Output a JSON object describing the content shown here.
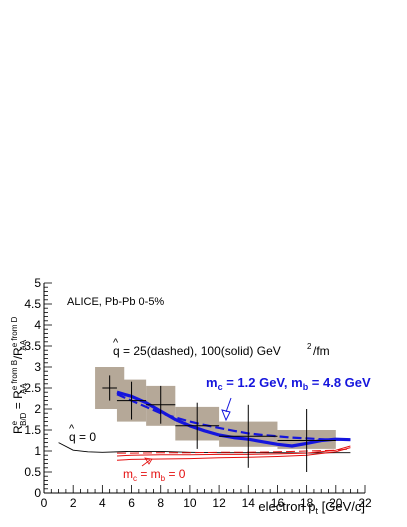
{
  "chart_data": {
    "type": "line",
    "title": "",
    "xlabel": "electron p_t [GeV/c]",
    "ylabel": "R_B/D^e = R_AA^e from B / R_AA^e from D",
    "xlim": [
      0,
      22
    ],
    "ylim": [
      0,
      5
    ],
    "x_ticks": [
      "0",
      "2",
      "4",
      "6",
      "8",
      "10",
      "12",
      "14",
      "16",
      "18",
      "20",
      "22"
    ],
    "y_ticks": [
      "0",
      "0.5",
      "1",
      "1.5",
      "2",
      "2.5",
      "3",
      "3.5",
      "4",
      "4.5",
      "5"
    ],
    "grid": false,
    "data_points": {
      "name": "ALICE, Pb-Pb 0-5%",
      "x": [
        4.5,
        6.0,
        8.0,
        10.5,
        14.0,
        18.0
      ],
      "y": [
        2.5,
        2.2,
        2.1,
        1.6,
        1.35,
        1.25
      ],
      "xerr": [
        0.5,
        1.0,
        1.0,
        1.5,
        2.0,
        2.0
      ],
      "yerr_lo": [
        0.3,
        0.45,
        0.45,
        0.55,
        0.75,
        0.75
      ],
      "yerr_hi": [
        0.3,
        0.45,
        0.45,
        0.55,
        0.75,
        0.75
      ],
      "sys_lo": [
        2.0,
        1.7,
        1.6,
        1.25,
        1.1,
        1.05
      ],
      "sys_hi": [
        3.0,
        2.7,
        2.55,
        2.05,
        1.7,
        1.5
      ],
      "box_halfwidth": [
        1.0,
        1.0,
        1.0,
        1.5,
        2.0,
        2.0
      ],
      "color": "#b5a898"
    },
    "series": [
      {
        "style": "solid",
        "color": "#1515dd",
        "width": 3.2,
        "x": [
          5,
          6,
          7,
          8,
          9,
          10,
          11,
          12,
          13,
          14,
          15,
          16,
          17,
          18,
          19,
          20,
          21
        ],
        "y": [
          2.4,
          2.3,
          2.15,
          1.95,
          1.75,
          1.6,
          1.48,
          1.38,
          1.32,
          1.28,
          1.22,
          1.16,
          1.12,
          1.18,
          1.25,
          1.28,
          1.27
        ]
      },
      {
        "style": "dashed",
        "color": "#1515dd",
        "width": 2.2,
        "x": [
          5,
          6,
          7,
          8,
          9,
          10,
          11,
          12,
          13,
          14,
          15,
          16,
          17,
          18,
          19,
          20,
          21
        ],
        "y": [
          2.35,
          2.2,
          2.05,
          1.9,
          1.8,
          1.7,
          1.62,
          1.55,
          1.48,
          1.42,
          1.38,
          1.35,
          1.32,
          1.3,
          1.28,
          1.27,
          1.27
        ]
      },
      {
        "style": "solid",
        "color": "#000000",
        "width": 0.9,
        "x": [
          1,
          2,
          3,
          4,
          6,
          8,
          10,
          12,
          14,
          16,
          18,
          20,
          21
        ],
        "y": [
          1.2,
          1.02,
          0.98,
          0.97,
          0.99,
          0.99,
          0.97,
          0.96,
          0.96,
          0.96,
          0.95,
          0.96,
          0.96
        ]
      },
      {
        "style": "solid",
        "color": "#e41010",
        "width": 1.0,
        "x": [
          5,
          6,
          8,
          10,
          12,
          14,
          16,
          18,
          20,
          21
        ],
        "y": [
          0.78,
          0.8,
          0.81,
          0.82,
          0.84,
          0.85,
          0.87,
          0.9,
          0.98,
          1.08
        ]
      },
      {
        "style": "solid",
        "color": "#e41010",
        "width": 1.0,
        "x": [
          5,
          6,
          8,
          10,
          12,
          14,
          16,
          18,
          20,
          21
        ],
        "y": [
          0.88,
          0.9,
          0.91,
          0.91,
          0.92,
          0.92,
          0.93,
          0.95,
          1.02,
          1.12
        ]
      },
      {
        "style": "dashed",
        "color": "#e41010",
        "width": 1.0,
        "x": [
          5,
          6,
          8,
          10,
          12,
          14,
          16,
          18,
          20,
          21
        ],
        "y": [
          0.95,
          0.95,
          0.96,
          0.96,
          0.97,
          0.97,
          0.98,
          1.0,
          1.02,
          1.05
        ]
      }
    ],
    "annotations": {
      "experiment": "ALICE, Pb-Pb 0-5%",
      "qhat_text": "= 25(dashed), 100(solid) GeV",
      "qhat_unit": "/fm",
      "qhat_exp": "2",
      "qhat_sym": "q",
      "qhat_zero_text": "= 0",
      "mass_text_blue_mc": "m",
      "mass_text_blue_c": "c",
      "mass_text_blue_mid": " = 1.2 GeV, m",
      "mass_text_blue_b": "b",
      "mass_text_blue_end": " = 4.8 GeV",
      "mass_text_red_m": "m",
      "mass_text_red_c": "c",
      "mass_text_red_mid": " = m",
      "mass_text_red_b": "b",
      "mass_text_red_end": " = 0"
    }
  }
}
